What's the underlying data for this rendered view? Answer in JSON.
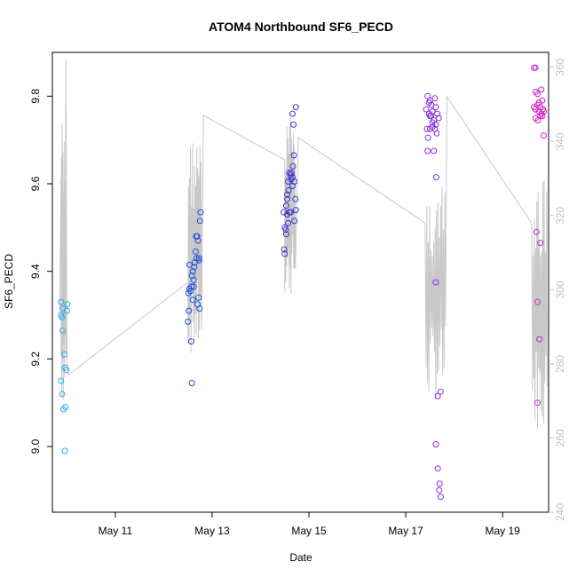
{
  "chart_data": {
    "type": "scatter",
    "title": "ATOM4 Northbound SF6_PECD",
    "xlabel": "Date",
    "ylabel": "SF6_PECD",
    "x_ticks": [
      "May 11",
      "May 13",
      "May 15",
      "May 17",
      "May 19"
    ],
    "x_tick_days": [
      11,
      13,
      15,
      17,
      19
    ],
    "xlim": [
      9.7,
      19.95
    ],
    "ylim": [
      8.85,
      9.9
    ],
    "y_ticks": [
      9.0,
      9.2,
      9.4,
      9.6,
      9.8
    ],
    "y2lim": [
      240,
      364
    ],
    "y2_ticks": [
      240,
      260,
      280,
      300,
      320,
      340,
      360
    ],
    "y2_axis_color": "#c0c0c0",
    "trace_color": "#c8c8c8",
    "grid": false,
    "legend": "none",
    "series": [
      {
        "color": "#29abe2",
        "points": [
          [
            9.88,
            9.33
          ],
          [
            9.88,
            9.3
          ],
          [
            9.9,
            9.295
          ],
          [
            9.92,
            9.315
          ],
          [
            9.91,
            9.265
          ],
          [
            9.88,
            9.15
          ],
          [
            9.9,
            9.12
          ],
          [
            9.95,
            9.21
          ],
          [
            9.96,
            9.18
          ],
          [
            9.99,
            9.175
          ],
          [
            9.93,
            9.085
          ],
          [
            9.97,
            9.09
          ],
          [
            9.96,
            8.99
          ],
          [
            10.0,
            9.31
          ],
          [
            10.01,
            9.325
          ]
        ]
      },
      {
        "color": "#1c4fe0",
        "points": [
          [
            12.5,
            9.285
          ],
          [
            12.52,
            9.31
          ],
          [
            12.51,
            9.35
          ],
          [
            12.53,
            9.36
          ],
          [
            12.55,
            9.355
          ],
          [
            12.57,
            9.365
          ],
          [
            12.53,
            9.415
          ],
          [
            12.58,
            9.39
          ],
          [
            12.6,
            9.4
          ],
          [
            12.62,
            9.38
          ],
          [
            12.63,
            9.41
          ],
          [
            12.6,
            9.335
          ],
          [
            12.62,
            9.365
          ],
          [
            12.64,
            9.42
          ],
          [
            12.66,
            9.445
          ],
          [
            12.67,
            9.48
          ],
          [
            12.69,
            9.48
          ],
          [
            12.71,
            9.47
          ],
          [
            12.68,
            9.43
          ],
          [
            12.73,
            9.43
          ],
          [
            12.7,
            9.325
          ],
          [
            12.72,
            9.34
          ],
          [
            12.74,
            9.315
          ],
          [
            12.76,
            9.535
          ],
          [
            12.75,
            9.515
          ],
          [
            12.57,
            9.24
          ],
          [
            12.58,
            9.145
          ],
          [
            12.73,
            9.425
          ]
        ]
      },
      {
        "color": "#3a33d0",
        "points": [
          [
            14.48,
            9.535
          ],
          [
            14.5,
            9.5
          ],
          [
            14.52,
            9.495
          ],
          [
            14.49,
            9.45
          ],
          [
            14.5,
            9.44
          ],
          [
            14.53,
            9.485
          ],
          [
            14.55,
            9.53
          ],
          [
            14.53,
            9.55
          ],
          [
            14.55,
            9.575
          ],
          [
            14.58,
            9.585
          ],
          [
            14.57,
            9.605
          ],
          [
            14.6,
            9.625
          ],
          [
            14.62,
            9.62
          ],
          [
            14.64,
            9.625
          ],
          [
            14.63,
            9.61
          ],
          [
            14.66,
            9.615
          ],
          [
            14.7,
            9.605
          ],
          [
            14.67,
            9.64
          ],
          [
            14.69,
            9.665
          ],
          [
            14.72,
            9.565
          ],
          [
            14.6,
            9.535
          ],
          [
            14.62,
            9.535
          ],
          [
            14.66,
            9.595
          ],
          [
            14.7,
            9.515
          ],
          [
            14.73,
            9.54
          ],
          [
            14.68,
            9.735
          ],
          [
            14.66,
            9.76
          ],
          [
            14.73,
            9.775
          ],
          [
            14.55,
            9.565
          ],
          [
            14.57,
            9.51
          ]
        ]
      },
      {
        "color": "#8a2be2",
        "points": [
          [
            17.42,
            9.77
          ],
          [
            17.45,
            9.8
          ],
          [
            17.48,
            9.785
          ],
          [
            17.5,
            9.79
          ],
          [
            17.53,
            9.78
          ],
          [
            17.55,
            9.765
          ],
          [
            17.6,
            9.795
          ],
          [
            17.62,
            9.775
          ],
          [
            17.65,
            9.76
          ],
          [
            17.68,
            9.75
          ],
          [
            17.48,
            9.76
          ],
          [
            17.52,
            9.755
          ],
          [
            17.55,
            9.74
          ],
          [
            17.58,
            9.745
          ],
          [
            17.62,
            9.735
          ],
          [
            17.44,
            9.725
          ],
          [
            17.46,
            9.705
          ],
          [
            17.5,
            9.725
          ],
          [
            17.55,
            9.73
          ],
          [
            17.6,
            9.725
          ],
          [
            17.64,
            9.715
          ],
          [
            17.45,
            9.675
          ],
          [
            17.58,
            9.675
          ],
          [
            17.63,
            9.615
          ],
          [
            17.62,
            9.375
          ],
          [
            17.62,
            9.005
          ],
          [
            17.66,
            9.115
          ],
          [
            17.72,
            9.125
          ],
          [
            17.66,
            8.95
          ],
          [
            17.7,
            8.915
          ],
          [
            17.69,
            8.9
          ],
          [
            17.72,
            8.885
          ],
          [
            17.5,
            9.755
          ]
        ]
      },
      {
        "color": "#d020c8",
        "points": [
          [
            19.65,
            9.865
          ],
          [
            19.68,
            9.865
          ],
          [
            19.68,
            9.81
          ],
          [
            19.72,
            9.805
          ],
          [
            19.75,
            9.785
          ],
          [
            19.8,
            9.815
          ],
          [
            19.82,
            9.79
          ],
          [
            19.65,
            9.775
          ],
          [
            19.68,
            9.77
          ],
          [
            19.72,
            9.78
          ],
          [
            19.75,
            9.765
          ],
          [
            19.78,
            9.775
          ],
          [
            19.8,
            9.76
          ],
          [
            19.83,
            9.77
          ],
          [
            19.85,
            9.765
          ],
          [
            19.68,
            9.75
          ],
          [
            19.73,
            9.745
          ],
          [
            19.78,
            9.755
          ],
          [
            19.82,
            9.755
          ],
          [
            19.85,
            9.71
          ],
          [
            19.7,
            9.49
          ],
          [
            19.78,
            9.465
          ],
          [
            19.72,
            9.33
          ],
          [
            19.76,
            9.245
          ],
          [
            19.72,
            9.1
          ]
        ]
      }
    ]
  }
}
